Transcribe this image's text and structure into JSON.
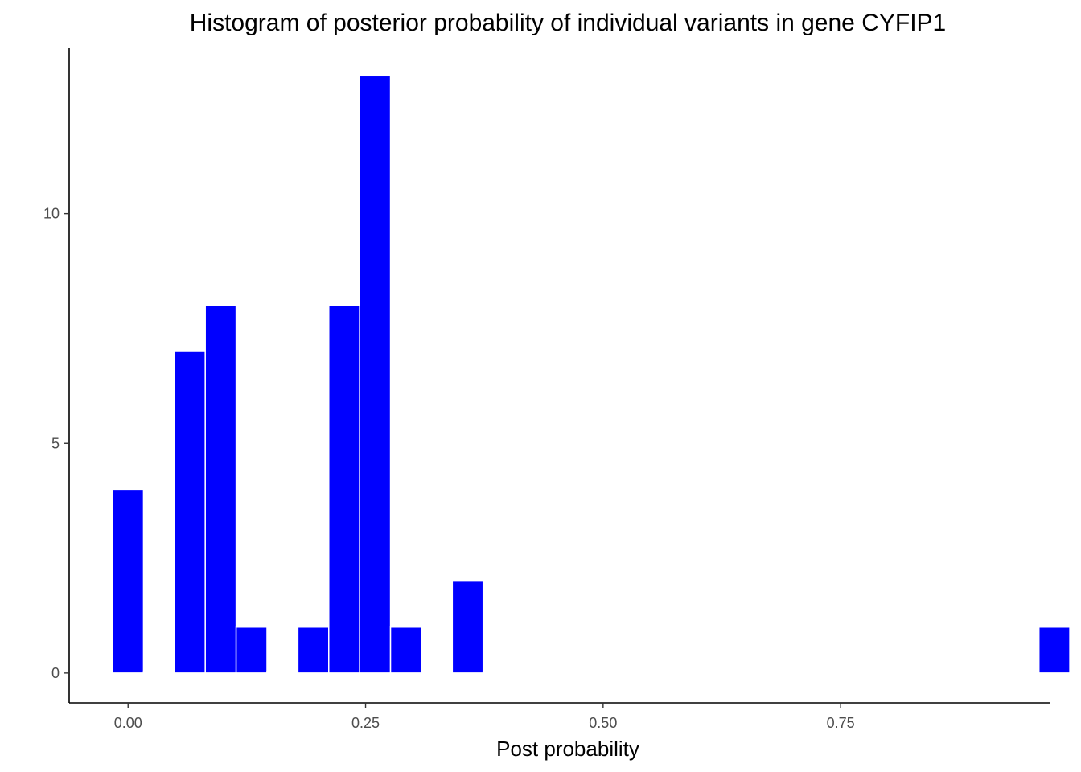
{
  "chart_data": {
    "type": "bar",
    "title": "Histogram of posterior probability of individual variants in gene CYFIP1",
    "xlabel": "Post probability",
    "ylabel": "",
    "bin_width": 0.0325,
    "x_start": -0.01625,
    "counts": [
      4,
      0,
      7,
      8,
      1,
      0,
      1,
      8,
      13,
      1,
      0,
      2,
      0,
      0,
      0,
      null,
      0,
      0,
      null,
      0,
      0,
      0,
      0,
      0,
      0,
      0,
      0,
      0,
      0,
      0,
      1
    ],
    "xlim": [
      -0.062,
      0.97
    ],
    "ylim": [
      -0.65,
      13.6
    ],
    "x_ticks": [
      0.0,
      0.25,
      0.5,
      0.75
    ],
    "x_tick_labels": [
      "0.00",
      "0.25",
      "0.50",
      "0.75"
    ],
    "y_ticks": [
      0,
      5,
      10
    ],
    "y_tick_labels": [
      "0",
      "5",
      "10"
    ],
    "bar_color": "#0000FF",
    "bar_outline": "#FFFFFF",
    "grid": false,
    "legend": "none"
  }
}
